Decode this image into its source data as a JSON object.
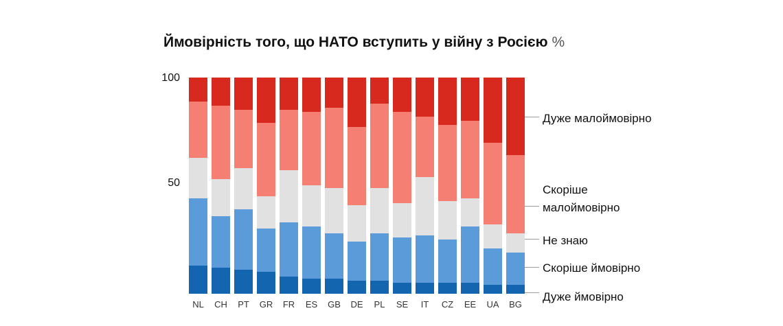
{
  "title": "Ймовірність того, що НАТО вступить у війну з Росією",
  "title_suffix": "%",
  "chart_data": {
    "type": "bar",
    "stacked": true,
    "title": "Ймовірність того, що НАТО вступить у війну з Росією %",
    "categories": [
      "NL",
      "CH",
      "PT",
      "GR",
      "FR",
      "ES",
      "GB",
      "DE",
      "PL",
      "SE",
      "IT",
      "CZ",
      "EE",
      "UA",
      "BG"
    ],
    "series": [
      {
        "name": "Дуже ймовірно",
        "color": "#1365af",
        "values": [
          13,
          12,
          11,
          10,
          8,
          7,
          7,
          6,
          6,
          5,
          5,
          5,
          5,
          4,
          4
        ]
      },
      {
        "name": "Скоріше ймовірно",
        "color": "#5b9bd9",
        "values": [
          31,
          24,
          28,
          20,
          25,
          24,
          21,
          18,
          22,
          21,
          22,
          20,
          26,
          17,
          15
        ]
      },
      {
        "name": "Не знаю",
        "color": "#e1e1e1",
        "values": [
          19,
          17,
          19,
          15,
          24,
          19,
          21,
          17,
          21,
          16,
          27,
          18,
          13,
          11,
          9
        ]
      },
      {
        "name": "Скоріше малоймовірно",
        "color": "#f47f72",
        "values": [
          26,
          34,
          27,
          34,
          28,
          34,
          37,
          36,
          39,
          42,
          28,
          35,
          36,
          38,
          36
        ]
      },
      {
        "name": "Дуже малоймовірно",
        "color": "#d8291f",
        "values": [
          11,
          13,
          15,
          21,
          15,
          16,
          14,
          23,
          12,
          16,
          18,
          22,
          20,
          30,
          36
        ]
      }
    ],
    "ylim": [
      0,
      100
    ],
    "yticks": [
      "100",
      "50"
    ],
    "legend_position": "right",
    "grid": false
  }
}
